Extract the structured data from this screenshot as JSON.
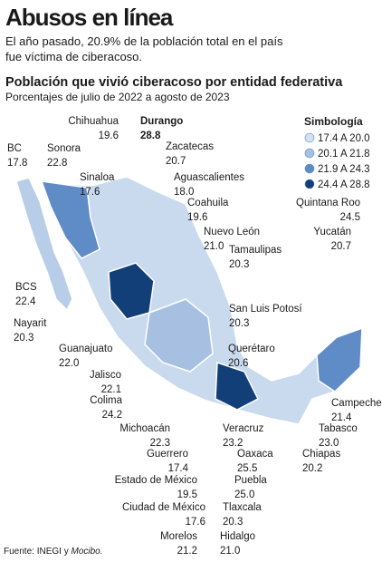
{
  "header": {
    "title": "Abusos en línea",
    "subtitle_lines": [
      "El año pasado, 20.9% de la población total en el país",
      "fue víctima de ciberacoso."
    ]
  },
  "map": {
    "title": "Población que vivió ciberacoso por entidad federativa",
    "subtitle": "Porcentajes de julio de 2022 a agosto de 2023",
    "legend": {
      "title": "Simbología",
      "items": [
        {
          "label": "17.4 A 20.0",
          "color": "#d3e0f1"
        },
        {
          "label": "20.1 A 21.8",
          "color": "#a7c0e1"
        },
        {
          "label": "21.9 A 24.3",
          "color": "#5f8cc6"
        },
        {
          "label": "24.4 A 28.8",
          "color": "#123f78"
        }
      ]
    },
    "states": [
      {
        "name": "BC",
        "value": "17.8"
      },
      {
        "name": "Sonora",
        "value": "22.8"
      },
      {
        "name": "Chihuahua",
        "value": "19.6"
      },
      {
        "name": "Durango",
        "value": "28.8"
      },
      {
        "name": "Zacatecas",
        "value": "20.7"
      },
      {
        "name": "Sinaloa",
        "value": "17.6"
      },
      {
        "name": "Aguascalientes",
        "value": "18.0"
      },
      {
        "name": "Coahuila",
        "value": "19.6"
      },
      {
        "name": "Nuevo León",
        "value": "21.0"
      },
      {
        "name": "Quintana Roo",
        "value": "24.5"
      },
      {
        "name": "Yucatán",
        "value": "20.7"
      },
      {
        "name": "BCS",
        "value": "22.4"
      },
      {
        "name": "Tamaulipas",
        "value": "20.3"
      },
      {
        "name": "San Luis Potosí",
        "value": "20.3"
      },
      {
        "name": "Nayarit",
        "value": "20.3"
      },
      {
        "name": "Querétaro",
        "value": "20.6"
      },
      {
        "name": "Guanajuato",
        "value": "22.0"
      },
      {
        "name": "Jalisco",
        "value": "22.1"
      },
      {
        "name": "Colima",
        "value": "24.2"
      },
      {
        "name": "Campeche",
        "value": "21.4"
      },
      {
        "name": "Michoacán",
        "value": "22.3"
      },
      {
        "name": "Veracruz",
        "value": "23.2"
      },
      {
        "name": "Tabasco",
        "value": "23.0"
      },
      {
        "name": "Chiapas",
        "value": "20.2"
      },
      {
        "name": "Oaxaca",
        "value": "25.5"
      },
      {
        "name": "Guerrero",
        "value": "17.4"
      },
      {
        "name": "Estado de México",
        "value": "19.5"
      },
      {
        "name": "Puebla",
        "value": "25.0"
      },
      {
        "name": "Ciudad de México",
        "value": "17.6"
      },
      {
        "name": "Tlaxcala",
        "value": "20.3"
      },
      {
        "name": "Morelos",
        "value": "21.2"
      },
      {
        "name": "Hidalgo",
        "value": "21.0"
      }
    ]
  },
  "footer": {
    "source": "Fuente: INEGI y ",
    "source_italic": "Mocibo."
  }
}
